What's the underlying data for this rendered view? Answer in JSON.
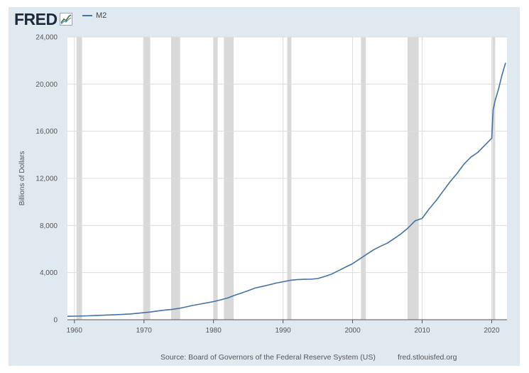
{
  "header": {
    "logo_text": "FRED",
    "logo_icon": "trend-line-icon",
    "legend_label": "M2"
  },
  "footer": {
    "source": "Source: Board of Governors of the Federal Reserve System (US)",
    "url": "fred.stlouisfed.org"
  },
  "colors": {
    "line": "#4572a7",
    "recession": "#d9d9d9",
    "background": "#e1e9f0",
    "plot": "#ffffff"
  },
  "chart_data": {
    "type": "line",
    "title": "",
    "xlabel": "",
    "ylabel": "Billions of Dollars",
    "xlim": [
      1959.0,
      2022.2
    ],
    "ylim": [
      0,
      24000
    ],
    "yticks": [
      0,
      4000,
      8000,
      12000,
      16000,
      20000,
      24000
    ],
    "ytick_labels": [
      "0",
      "4,000",
      "8,000",
      "12,000",
      "16,000",
      "20,000",
      "24,000"
    ],
    "xticks": [
      1960,
      1970,
      1980,
      1990,
      2000,
      2010,
      2020
    ],
    "xtick_labels": [
      "1960",
      "1970",
      "1980",
      "1990",
      "2000",
      "2010",
      "2020"
    ],
    "grid": true,
    "legend": "top-left",
    "recessions": [
      [
        1960.3,
        1961.1
      ],
      [
        1969.9,
        1970.9
      ],
      [
        1973.9,
        1975.2
      ],
      [
        1980.0,
        1980.6
      ],
      [
        1981.5,
        1982.9
      ],
      [
        1990.6,
        1991.2
      ],
      [
        2001.2,
        2001.9
      ],
      [
        2007.9,
        2009.5
      ],
      [
        2020.1,
        2020.4
      ]
    ],
    "series": [
      {
        "name": "M2",
        "x": [
          1959.0,
          1960,
          1962,
          1964,
          1966,
          1968,
          1970,
          1971,
          1972,
          1973,
          1974,
          1975,
          1976,
          1977,
          1978,
          1979,
          1980,
          1981,
          1982,
          1983,
          1984,
          1985,
          1986,
          1987,
          1988,
          1989,
          1990,
          1991,
          1992,
          1993,
          1994,
          1995,
          1996,
          1997,
          1998,
          1999,
          2000,
          2001,
          2002,
          2003,
          2004,
          2005,
          2006,
          2007,
          2008,
          2009,
          2010,
          2011,
          2012,
          2013,
          2014,
          2015,
          2016,
          2017,
          2018,
          2019,
          2020.0,
          2020.2,
          2020.5,
          2021.0,
          2021.5,
          2022.0
        ],
        "y": [
          290,
          300,
          330,
          380,
          430,
          490,
          600,
          660,
          740,
          820,
          870,
          960,
          1080,
          1210,
          1320,
          1430,
          1540,
          1680,
          1840,
          2070,
          2260,
          2470,
          2690,
          2820,
          2960,
          3110,
          3220,
          3340,
          3400,
          3430,
          3440,
          3500,
          3670,
          3880,
          4170,
          4470,
          4760,
          5150,
          5540,
          5930,
          6230,
          6500,
          6890,
          7300,
          7800,
          8400,
          8600,
          9400,
          10100,
          10900,
          11700,
          12400,
          13200,
          13800,
          14200,
          14800,
          15400,
          17800,
          18600,
          19600,
          20800,
          21800
        ]
      }
    ]
  }
}
